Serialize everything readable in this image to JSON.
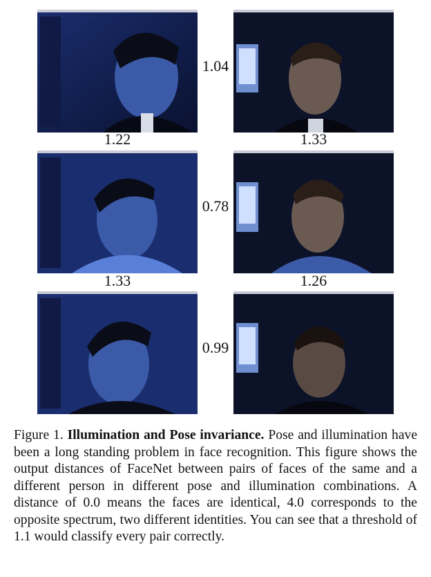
{
  "figure": {
    "rows": [
      {
        "pair_distance": "1.04",
        "left_cross_distance": "1.22",
        "right_cross_distance": "1.33"
      },
      {
        "pair_distance": "0.78",
        "left_cross_distance": "1.33",
        "right_cross_distance": "1.26"
      },
      {
        "pair_distance": "0.99"
      }
    ]
  },
  "caption": {
    "label": "Figure 1.",
    "title": "Illumination and Pose invariance.",
    "body": "Pose and illumination have been a long standing problem in face recognition. This figure shows the output distances of FaceNet between pairs of faces of the same and a different person in different pose and illumination combinations. A distance of 0.0 means the faces are identical, 4.0 corresponds to the opposite spectrum, two different identities. You can see that a threshold of 1.1 would classify every pair correctly."
  },
  "colors": {
    "photo_background": "#0b1330",
    "skin_left": "#3b5aa8",
    "skin_right": "#6a5a52",
    "hair": "#0a0c18"
  }
}
